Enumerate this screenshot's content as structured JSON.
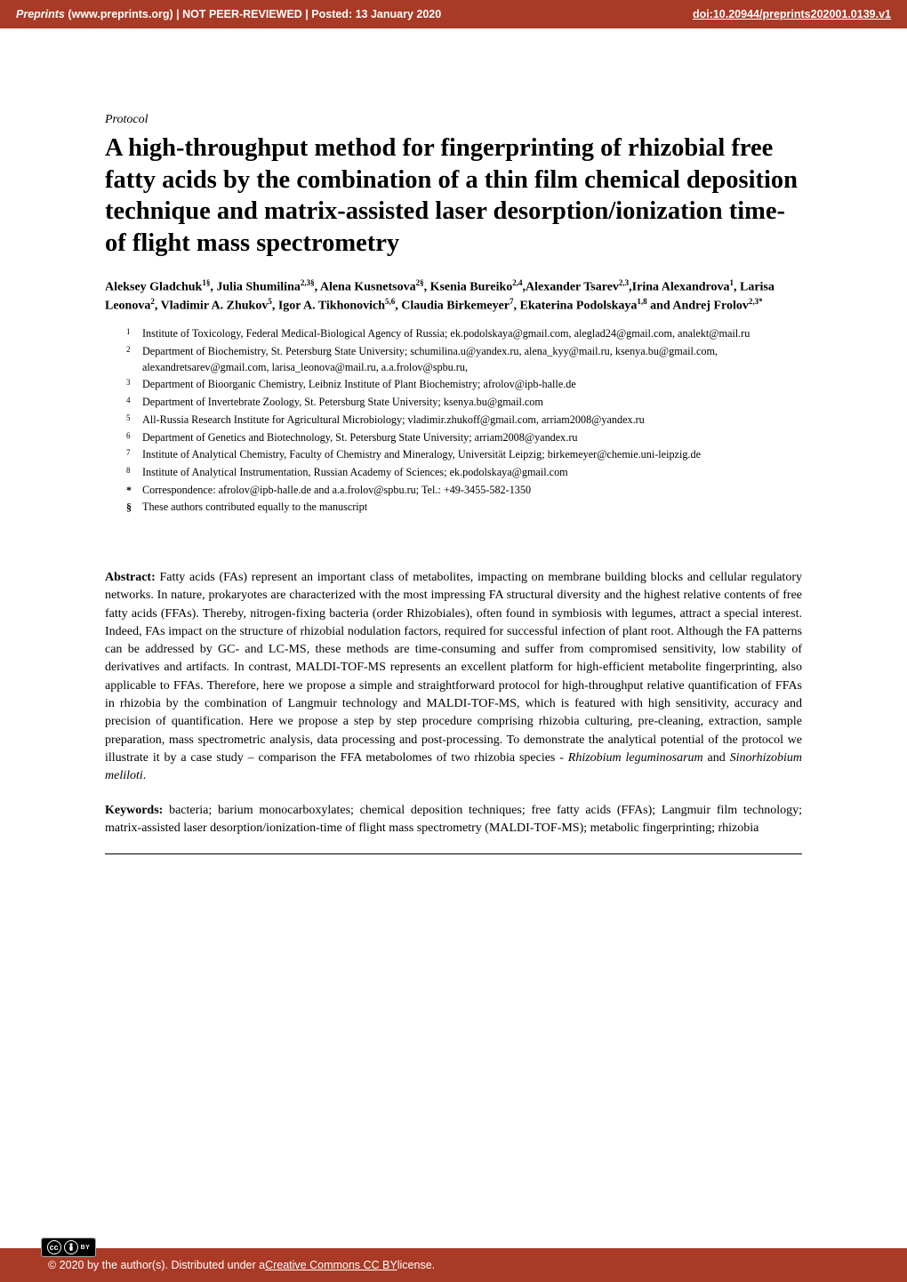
{
  "banner": {
    "site_italic": "Preprints",
    "site_rest": " (www.preprints.org)  |  NOT PEER-REVIEWED  |  Posted: 13 January 2020",
    "doi": "doi:10.20944/preprints202001.0139.v1",
    "bg_color": "#a93a26",
    "text_color": "#ffffff"
  },
  "article": {
    "type": "Protocol",
    "title": "A high-throughput method for fingerprinting of rhizobial free fatty acids by the combination of a thin film chemical deposition technique and matrix-assisted laser desorption/ionization time-of flight mass spectrometry",
    "authors_html": "Aleksey Gladchuk<sup>1§</sup>, Julia Shumilina<sup>2,3§</sup>, Alena Kusnetsova<sup>2§</sup>, Ksenia Bureiko<sup>2,4</sup>,Alexander Tsarev<sup>2,3</sup>,Irina Alexandrova<sup>1</sup>, Larisa Leonova<sup>2</sup>, Vladimir A. Zhukov<sup>5</sup>, Igor A. Tikhonovich<sup>5,6</sup>, Claudia Birkemeyer<sup>7</sup>, Ekaterina Podolskaya<sup>1,8</sup> and Andrej Frolov<sup>2,3*</sup>",
    "affiliations": [
      {
        "n": "1",
        "text": "Institute of Toxicology, Federal Medical-Biological Agency of Russia; ek.podolskaya@gmail.com, aleglad24@gmail.com, analekt@mail.ru"
      },
      {
        "n": "2",
        "text": "Department of Biochemistry, St. Petersburg State University; schumilina.u@yandex.ru, alena_kyy@mail.ru, ksenya.bu@gmail.com, alexandretsarev@gmail.com, larisa_leonova@mail.ru, a.a.frolov@spbu.ru,"
      },
      {
        "n": "3",
        "text": "Department of Bioorganic Chemistry, Leibniz Institute of Plant Biochemistry; afrolov@ipb-halle.de"
      },
      {
        "n": "4",
        "text": "Department of Invertebrate Zoology, St. Petersburg State University; ksenya.bu@gmail.com"
      },
      {
        "n": "5",
        "text": "All-Russia Research Institute for Agricultural Microbiology; vladimir.zhukoff@gmail.com, arriam2008@yandex.ru"
      },
      {
        "n": "6",
        "text": "Department of Genetics and Biotechnology, St. Petersburg State University; arriam2008@yandex.ru"
      },
      {
        "n": "7",
        "text": "Institute of Analytical Chemistry, Faculty of Chemistry and Mineralogy, Universität Leipzig; birkemeyer@chemie.uni-leipzig.de"
      },
      {
        "n": "8",
        "text": "Institute of Analytical Instrumentation, Russian Academy of Sciences; ek.podolskaya@gmail.com"
      },
      {
        "n": "*",
        "text": "Correspondence: afrolov@ipb-halle.de and a.a.frolov@spbu.ru; Tel.: +49-3455-582-1350",
        "sym": true
      },
      {
        "n": "§",
        "text": "These authors contributed equally to the manuscript",
        "sym": true
      }
    ],
    "abstract_label": "Abstract:",
    "abstract": " Fatty acids (FAs) represent an important class of metabolites, impacting on membrane building blocks and cellular regulatory networks. In nature, prokaryotes are characterized with the most impressing FA structural diversity and the highest relative contents of free fatty acids (FFAs). Thereby, nitrogen-fixing bacteria (order Rhizobiales), often found in symbiosis with legumes, attract a special interest. Indeed, FAs impact on the structure of rhizobial nodulation factors, required for successful infection of plant root. Although the FA patterns can be addressed by GC- and LC-MS, these methods are time-consuming and suffer from compromised sensitivity, low stability of derivatives and artifacts. In contrast, MALDI-TOF-MS represents an excellent platform for high-efficient metabolite fingerprinting, also applicable to FFAs. Therefore, here we propose a simple and straightforward protocol for high-throughput relative quantification of FFAs in rhizobia by the combination of Langmuir technology and MALDI-TOF-MS, which is featured with high sensitivity, accuracy and precision of quantification. Here we propose a step by step procedure comprising rhizobia culturing, pre-cleaning, extraction, sample preparation, mass spectrometric analysis, data processing and post-processing. To demonstrate the analytical potential of the protocol we illustrate it by a case study – comparison the FFA metabolomes of two rhizobia species - ",
    "abstract_italic1": "Rhizobium leguminosarum",
    "abstract_mid": " and ",
    "abstract_italic2": "Sinorhizobium meliloti",
    "abstract_end": ".",
    "keywords_label": "Keywords:",
    "keywords": " bacteria; barium monocarboxylates; chemical deposition techniques; free fatty acids (FFAs); Langmuir film technology; matrix-assisted laser desorption/ionization-time of flight mass spectrometry (MALDI-TOF-MS); metabolic fingerprinting; rhizobia"
  },
  "footer": {
    "text_prefix": "© 2020 by the author(s). Distributed under a ",
    "link_text": "Creative Commons CC BY",
    "text_suffix": " license.",
    "cc_label": "cc",
    "by_label": "BY"
  },
  "typography": {
    "title_fontsize": 28.5,
    "body_fontsize": 14,
    "aff_fontsize": 12.2,
    "banner_fontsize": 12.5
  }
}
